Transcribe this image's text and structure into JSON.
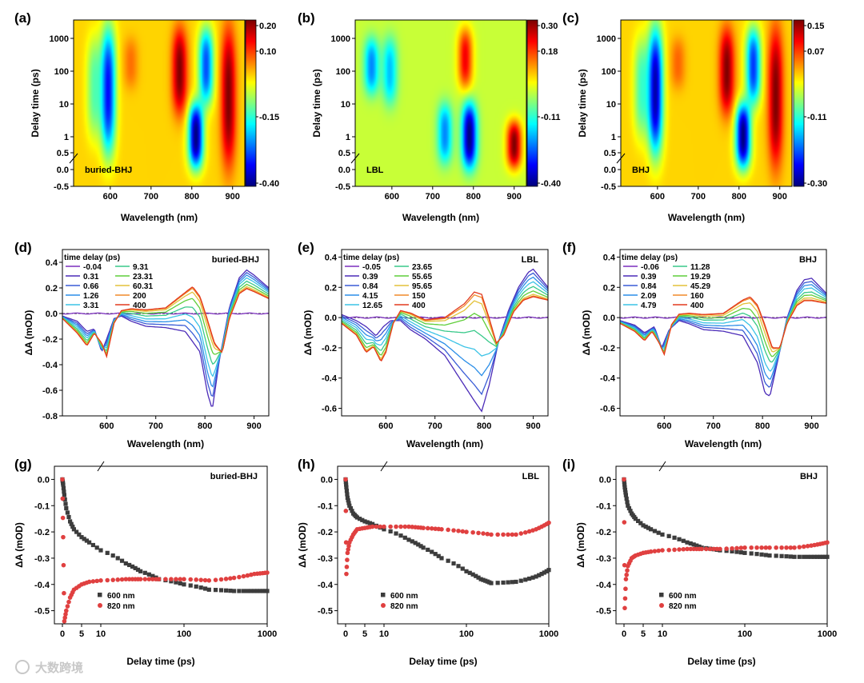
{
  "figure": {
    "watermark": "大数跨境",
    "panels": [
      "(a)",
      "(b)",
      "(c)",
      "(d)",
      "(e)",
      "(f)",
      "(g)",
      "(h)",
      "(i)"
    ]
  },
  "chart_data": [
    {
      "panel": "(a)",
      "type": "heatmap",
      "inset_label": "buried-BHJ",
      "xlabel": "Wavelength (nm)",
      "ylabel": "Delay time (ps)",
      "xlim": [
        510,
        930
      ],
      "xticks": [
        "600",
        "700",
        "800",
        "900"
      ],
      "yticks": [
        "-0.5",
        "0.0",
        "0.5",
        "1",
        "10",
        "100",
        "1000"
      ],
      "colorbar": {
        "ticks": [
          "0.20",
          "0.10",
          "-0.15",
          "-0.40"
        ],
        "range": [
          -0.4,
          0.2
        ]
      },
      "features": [
        {
          "wavelength": 560,
          "delay_range": [
            1,
            1000
          ],
          "value": -0.12
        },
        {
          "wavelength": 595,
          "delay_range": [
            0.5,
            2000
          ],
          "value": -0.32
        },
        {
          "wavelength": 650,
          "delay_range": [
            30,
            1000
          ],
          "value": 0.06
        },
        {
          "wavelength": 770,
          "delay_range": [
            5,
            2000
          ],
          "value": 0.2
        },
        {
          "wavelength": 810,
          "delay_range": [
            0.05,
            10
          ],
          "value": -0.4
        },
        {
          "wavelength": 835,
          "delay_range": [
            10,
            2000
          ],
          "value": -0.28
        },
        {
          "wavelength": 890,
          "delay_range": [
            0.1,
            2000
          ],
          "value": 0.2
        }
      ]
    },
    {
      "panel": "(b)",
      "type": "heatmap",
      "inset_label": "LBL",
      "xlabel": "Wavelength (nm)",
      "ylabel": "Delay time (ps)",
      "xlim": [
        510,
        930
      ],
      "xticks": [
        "600",
        "700",
        "800",
        "900"
      ],
      "yticks": [
        "-0.5",
        "0.0",
        "0.5",
        "1",
        "10",
        "100",
        "1000"
      ],
      "colorbar": {
        "ticks": [
          "0.30",
          "0.18",
          "-0.11",
          "-0.40"
        ],
        "range": [
          -0.4,
          0.3
        ]
      },
      "features": [
        {
          "wavelength": 550,
          "delay_range": [
            20,
            1000
          ],
          "value": -0.22
        },
        {
          "wavelength": 595,
          "delay_range": [
            10,
            1000
          ],
          "value": -0.18
        },
        {
          "wavelength": 730,
          "delay_range": [
            0.2,
            10
          ],
          "value": -0.22
        },
        {
          "wavelength": 780,
          "delay_range": [
            30,
            2000
          ],
          "value": 0.22
        },
        {
          "wavelength": 790,
          "delay_range": [
            0.05,
            10
          ],
          "value": -0.4
        },
        {
          "wavelength": 900,
          "delay_range": [
            0.05,
            3
          ],
          "value": 0.3
        }
      ]
    },
    {
      "panel": "(c)",
      "type": "heatmap",
      "inset_label": "BHJ",
      "xlabel": "Wavelength (nm)",
      "ylabel": "Delay time (ps)",
      "xlim": [
        510,
        930
      ],
      "xticks": [
        "600",
        "700",
        "800",
        "900"
      ],
      "yticks": [
        "-0.5",
        "0.0",
        "0.5",
        "1",
        "10",
        "100",
        "1000"
      ],
      "colorbar": {
        "ticks": [
          "0.15",
          "0.07",
          "-0.11",
          "-0.30"
        ],
        "range": [
          -0.3,
          0.15
        ]
      },
      "features": [
        {
          "wavelength": 560,
          "delay_range": [
            1,
            1000
          ],
          "value": -0.1
        },
        {
          "wavelength": 595,
          "delay_range": [
            0.5,
            2000
          ],
          "value": -0.28
        },
        {
          "wavelength": 650,
          "delay_range": [
            30,
            1000
          ],
          "value": 0.05
        },
        {
          "wavelength": 770,
          "delay_range": [
            5,
            2000
          ],
          "value": 0.15
        },
        {
          "wavelength": 810,
          "delay_range": [
            0.05,
            10
          ],
          "value": -0.3
        },
        {
          "wavelength": 835,
          "delay_range": [
            10,
            2000
          ],
          "value": -0.22
        },
        {
          "wavelength": 890,
          "delay_range": [
            0.1,
            2000
          ],
          "value": 0.15
        }
      ]
    },
    {
      "panel": "(d)",
      "type": "line",
      "inset_label": "buried-BHJ",
      "xlabel": "Wavelength (nm)",
      "ylabel": "ΔA (mOD)",
      "xlim": [
        510,
        930
      ],
      "ylim": [
        -0.8,
        0.5
      ],
      "xticks": [
        "600",
        "700",
        "800",
        "900"
      ],
      "yticks": [
        "-0.8",
        "-0.6",
        "-0.4",
        "-0.2",
        "0.0",
        "0.2",
        "0.4"
      ],
      "legend_title": "time delay (ps)",
      "series": [
        {
          "name": "-0.04",
          "color": "#7b2fbe",
          "f": 0.0
        },
        {
          "name": "0.31",
          "color": "#4b2bb8",
          "f": 1.0
        },
        {
          "name": "0.66",
          "color": "#3a5cd6",
          "f": 0.93
        },
        {
          "name": "1.26",
          "color": "#2b8ee8",
          "f": 0.86
        },
        {
          "name": "3.31",
          "color": "#3cc3e6",
          "f": 0.78
        },
        {
          "name": "9.31",
          "color": "#38c98a",
          "f": 0.68
        },
        {
          "name": "23.31",
          "color": "#5fce3a",
          "f": 0.58
        },
        {
          "name": "60.31",
          "color": "#e3c23a",
          "f": 0.5
        },
        {
          "name": "200",
          "color": "#f08a2a",
          "f": 0.45
        },
        {
          "name": "400",
          "color": "#e23a1e",
          "f": 0.43
        }
      ],
      "early": {
        "x": [
          510,
          540,
          560,
          575,
          590,
          600,
          615,
          630,
          650,
          680,
          720,
          760,
          790,
          805,
          815,
          830,
          850,
          870,
          885,
          900,
          930
        ],
        "y": [
          -0.02,
          -0.06,
          -0.14,
          -0.12,
          -0.3,
          -0.2,
          -0.04,
          -0.02,
          -0.06,
          -0.1,
          -0.11,
          -0.14,
          -0.3,
          -0.62,
          -0.75,
          -0.35,
          0.05,
          0.28,
          0.34,
          0.3,
          0.2
        ]
      },
      "late": {
        "x": [
          510,
          540,
          560,
          575,
          590,
          600,
          615,
          630,
          650,
          680,
          720,
          760,
          775,
          790,
          805,
          820,
          835,
          850,
          870,
          885,
          900,
          930
        ],
        "y": [
          -0.05,
          -0.2,
          -0.33,
          -0.2,
          -0.3,
          -0.44,
          -0.1,
          0.03,
          0.05,
          0.04,
          0.06,
          0.22,
          0.28,
          0.18,
          -0.05,
          -0.3,
          -0.4,
          -0.05,
          0.2,
          0.25,
          0.22,
          0.15
        ]
      }
    },
    {
      "panel": "(e)",
      "type": "line",
      "inset_label": "LBL",
      "xlabel": "Wavelength (nm)",
      "ylabel": "ΔA (mOD)",
      "xlim": [
        510,
        930
      ],
      "ylim": [
        -0.65,
        0.45
      ],
      "xticks": [
        "600",
        "700",
        "800",
        "900"
      ],
      "yticks": [
        "-0.6",
        "-0.4",
        "-0.2",
        "0.0",
        "0.2",
        "0.4"
      ],
      "legend_title": "time delay (ps)",
      "series": [
        {
          "name": "-0.05",
          "color": "#7b2fbe",
          "f": 0.0
        },
        {
          "name": "0.39",
          "color": "#4b2bb8",
          "f": 1.0
        },
        {
          "name": "0.84",
          "color": "#3a5cd6",
          "f": 0.93
        },
        {
          "name": "4.15",
          "color": "#2b8ee8",
          "f": 0.85
        },
        {
          "name": "12.65",
          "color": "#3cc3e6",
          "f": 0.76
        },
        {
          "name": "23.65",
          "color": "#38c98a",
          "f": 0.66
        },
        {
          "name": "55.65",
          "color": "#5fce3a",
          "f": 0.56
        },
        {
          "name": "95.65",
          "color": "#e3c23a",
          "f": 0.48
        },
        {
          "name": "150",
          "color": "#f08a2a",
          "f": 0.44
        },
        {
          "name": "400",
          "color": "#e23a1e",
          "f": 0.42
        }
      ],
      "early": {
        "x": [
          510,
          540,
          560,
          580,
          595,
          610,
          630,
          650,
          680,
          720,
          750,
          780,
          795,
          810,
          830,
          850,
          870,
          890,
          900,
          930
        ],
        "y": [
          0.02,
          -0.02,
          -0.06,
          -0.12,
          -0.06,
          -0.02,
          -0.02,
          -0.08,
          -0.14,
          -0.25,
          -0.4,
          -0.55,
          -0.62,
          -0.45,
          -0.15,
          0.05,
          0.2,
          0.3,
          0.32,
          0.2
        ]
      },
      "late": {
        "x": [
          510,
          540,
          560,
          575,
          590,
          600,
          615,
          630,
          650,
          680,
          720,
          760,
          780,
          795,
          810,
          825,
          840,
          860,
          880,
          900,
          930
        ],
        "y": [
          -0.05,
          -0.15,
          -0.3,
          -0.25,
          -0.38,
          -0.3,
          -0.05,
          0.06,
          0.04,
          -0.02,
          0.0,
          0.12,
          0.22,
          0.2,
          0.0,
          -0.22,
          -0.15,
          0.05,
          0.15,
          0.18,
          0.15
        ]
      }
    },
    {
      "panel": "(f)",
      "type": "line",
      "inset_label": "BHJ",
      "xlabel": "Wavelength (nm)",
      "ylabel": "ΔA (mOD)",
      "xlim": [
        510,
        930
      ],
      "ylim": [
        -0.65,
        0.45
      ],
      "xticks": [
        "600",
        "700",
        "800",
        "900"
      ],
      "yticks": [
        "-0.6",
        "-0.4",
        "-0.2",
        "0.0",
        "0.2",
        "0.4"
      ],
      "legend_title": "time delay (ps)",
      "series": [
        {
          "name": "-0.06",
          "color": "#7b2fbe",
          "f": 0.0
        },
        {
          "name": "0.39",
          "color": "#4b2bb8",
          "f": 1.0
        },
        {
          "name": "0.84",
          "color": "#3a5cd6",
          "f": 0.93
        },
        {
          "name": "2.09",
          "color": "#2b8ee8",
          "f": 0.86
        },
        {
          "name": "4.79",
          "color": "#3cc3e6",
          "f": 0.78
        },
        {
          "name": "11.28",
          "color": "#38c98a",
          "f": 0.68
        },
        {
          "name": "19.29",
          "color": "#5fce3a",
          "f": 0.6
        },
        {
          "name": "45.29",
          "color": "#e3c23a",
          "f": 0.52
        },
        {
          "name": "160",
          "color": "#f08a2a",
          "f": 0.46
        },
        {
          "name": "400",
          "color": "#e23a1e",
          "f": 0.44
        }
      ],
      "early": {
        "x": [
          510,
          540,
          560,
          580,
          595,
          610,
          630,
          650,
          680,
          720,
          760,
          790,
          805,
          815,
          830,
          850,
          870,
          885,
          900,
          930
        ],
        "y": [
          -0.02,
          -0.05,
          -0.1,
          -0.06,
          -0.2,
          -0.08,
          -0.02,
          -0.04,
          -0.08,
          -0.09,
          -0.12,
          -0.3,
          -0.5,
          -0.52,
          -0.3,
          0.0,
          0.18,
          0.25,
          0.26,
          0.16
        ]
      },
      "late": {
        "x": [
          510,
          540,
          560,
          575,
          590,
          600,
          615,
          630,
          650,
          680,
          720,
          760,
          775,
          790,
          805,
          820,
          835,
          850,
          870,
          885,
          900,
          930
        ],
        "y": [
          -0.05,
          -0.12,
          -0.2,
          -0.12,
          -0.22,
          -0.32,
          -0.06,
          0.03,
          0.04,
          0.03,
          0.04,
          0.16,
          0.19,
          0.12,
          -0.05,
          -0.25,
          -0.26,
          -0.05,
          0.1,
          0.14,
          0.14,
          0.12
        ]
      }
    },
    {
      "panel": "(g)",
      "type": "scatter",
      "inset_label": "buried-BHJ",
      "xlabel": "Delay time (ps)",
      "ylabel": "ΔA (mOD)",
      "ylim": [
        -0.55,
        0.05
      ],
      "xticks": [
        "0",
        "5",
        "10",
        "100",
        "1000"
      ],
      "yticks": [
        "-0.5",
        "-0.4",
        "-0.3",
        "-0.2",
        "-0.1",
        "0.0"
      ],
      "series": [
        {
          "name": "600 nm",
          "color": "#3c3c3c",
          "marker": "square",
          "x": [
            0,
            0.2,
            0.5,
            1,
            2,
            3,
            5,
            7,
            10,
            20,
            30,
            50,
            100,
            200,
            400,
            700,
            1000
          ],
          "y": [
            0.0,
            -0.02,
            -0.06,
            -0.11,
            -0.16,
            -0.19,
            -0.22,
            -0.24,
            -0.27,
            -0.32,
            -0.35,
            -0.38,
            -0.4,
            -0.42,
            -0.425,
            -0.425,
            -0.425
          ]
        },
        {
          "name": "820 nm",
          "color": "#e04040",
          "marker": "circle",
          "x": [
            0,
            0.2,
            0.5,
            1,
            2,
            3,
            5,
            7,
            10,
            20,
            30,
            50,
            100,
            200,
            400,
            700,
            1000
          ],
          "y": [
            0.0,
            -0.22,
            -0.54,
            -0.5,
            -0.45,
            -0.42,
            -0.4,
            -0.39,
            -0.385,
            -0.38,
            -0.38,
            -0.38,
            -0.38,
            -0.385,
            -0.375,
            -0.36,
            -0.355
          ]
        }
      ]
    },
    {
      "panel": "(h)",
      "type": "scatter",
      "inset_label": "LBL",
      "xlabel": "Delay time (ps)",
      "ylabel": "ΔA (mOD)",
      "ylim": [
        -0.55,
        0.05
      ],
      "xticks": [
        "0",
        "5",
        "10",
        "100",
        "1000"
      ],
      "yticks": [
        "-0.5",
        "-0.4",
        "-0.3",
        "-0.2",
        "-0.1",
        "0.0"
      ],
      "series": [
        {
          "name": "600 nm",
          "color": "#3c3c3c",
          "marker": "square",
          "x": [
            0,
            0.2,
            0.5,
            1,
            2,
            3,
            5,
            7,
            10,
            20,
            30,
            50,
            100,
            150,
            200,
            400,
            700,
            1000
          ],
          "y": [
            0.0,
            -0.03,
            -0.07,
            -0.1,
            -0.13,
            -0.145,
            -0.16,
            -0.17,
            -0.19,
            -0.23,
            -0.26,
            -0.3,
            -0.35,
            -0.38,
            -0.395,
            -0.39,
            -0.37,
            -0.345
          ]
        },
        {
          "name": "820 nm",
          "color": "#e04040",
          "marker": "circle",
          "x": [
            0,
            0.2,
            0.5,
            1,
            2,
            3,
            5,
            7,
            10,
            20,
            30,
            50,
            100,
            200,
            400,
            700,
            1000
          ],
          "y": [
            0.0,
            -0.36,
            -0.28,
            -0.24,
            -0.21,
            -0.19,
            -0.185,
            -0.18,
            -0.18,
            -0.18,
            -0.185,
            -0.19,
            -0.2,
            -0.21,
            -0.21,
            -0.19,
            -0.165
          ]
        }
      ]
    },
    {
      "panel": "(i)",
      "type": "scatter",
      "inset_label": "BHJ",
      "xlabel": "Delay time (ps)",
      "ylabel": "ΔA (mOD)",
      "ylim": [
        -0.55,
        0.05
      ],
      "xticks": [
        "0",
        "5",
        "10",
        "100",
        "1000"
      ],
      "yticks": [
        "-0.5",
        "-0.4",
        "-0.3",
        "-0.2",
        "-0.1",
        "0.0"
      ],
      "series": [
        {
          "name": "600 nm",
          "color": "#3c3c3c",
          "marker": "square",
          "x": [
            0,
            0.2,
            0.5,
            1,
            2,
            3,
            5,
            7,
            10,
            20,
            30,
            50,
            100,
            200,
            400,
            700,
            1000
          ],
          "y": [
            0.0,
            -0.03,
            -0.06,
            -0.1,
            -0.13,
            -0.15,
            -0.175,
            -0.19,
            -0.21,
            -0.24,
            -0.26,
            -0.27,
            -0.28,
            -0.29,
            -0.295,
            -0.295,
            -0.295
          ]
        },
        {
          "name": "820 nm",
          "color": "#e04040",
          "marker": "circle",
          "x": [
            0,
            0.2,
            0.5,
            1,
            2,
            3,
            5,
            7,
            10,
            20,
            30,
            50,
            100,
            200,
            400,
            700,
            1000
          ],
          "y": [
            0.0,
            -0.49,
            -0.38,
            -0.33,
            -0.3,
            -0.29,
            -0.28,
            -0.275,
            -0.27,
            -0.265,
            -0.265,
            -0.265,
            -0.26,
            -0.26,
            -0.26,
            -0.25,
            -0.24
          ]
        }
      ]
    }
  ]
}
